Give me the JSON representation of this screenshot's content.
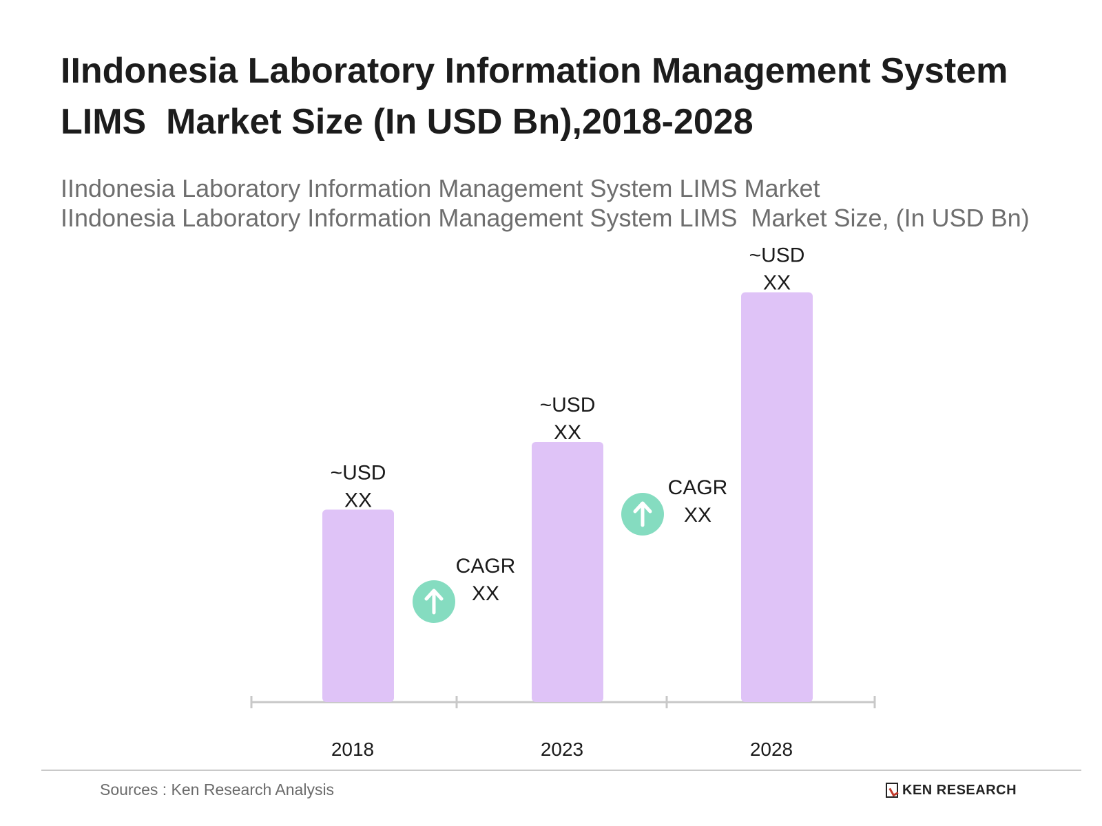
{
  "header": {
    "title_line1": "IIndonesia Laboratory Information Management System",
    "title_line2": "LIMS  Market Size (In USD Bn),2018-2028",
    "subtitle_line1": "IIndonesia Laboratory Information Management System LIMS Market",
    "subtitle_line2": "IIndonesia Laboratory Information Management System LIMS  Market Size, (In USD Bn)"
  },
  "chart_data": {
    "type": "bar",
    "categories": [
      "2018",
      "2023",
      "2028"
    ],
    "values": [
      27,
      36.5,
      57.5
    ],
    "ylim": [
      0,
      62
    ],
    "value_labels": [
      [
        "~USD",
        "XX"
      ],
      [
        "~USD",
        "XX"
      ],
      [
        "~USD",
        "XX"
      ]
    ],
    "annotations": [
      {
        "between": [
          "2018",
          "2023"
        ],
        "lines": [
          "CAGR",
          "XX"
        ],
        "icon": "arrow-up-circle-icon"
      },
      {
        "between": [
          "2023",
          "2028"
        ],
        "lines": [
          "CAGR",
          "XX"
        ],
        "icon": "arrow-up-circle-icon"
      }
    ],
    "colors": {
      "bar": "#dfc3f7",
      "cagr_icon": "#85dcc0",
      "axis": "#c8c8c8"
    },
    "grid": false,
    "legend": "none"
  },
  "footer": {
    "source": "Sources : Ken Research Analysis",
    "brand": "KEN RESEARCH",
    "brand_logo_icon": "ken-research-logo-icon"
  }
}
